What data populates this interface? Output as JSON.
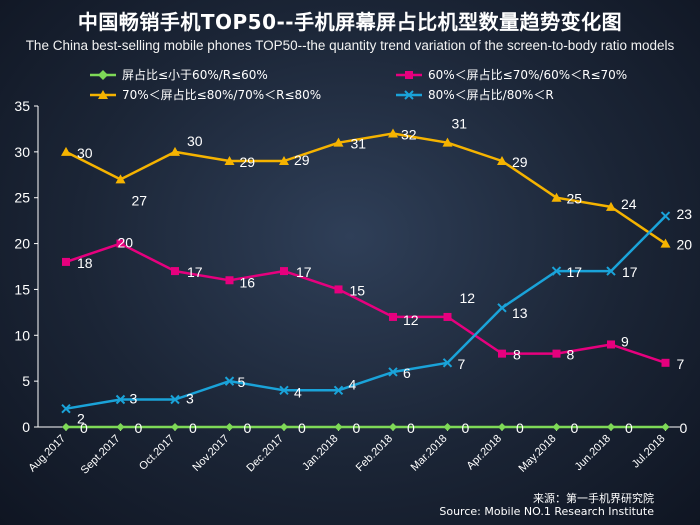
{
  "header": {
    "title": "中国畅销手机TOP50--手机屏幕屏占比机型数量趋势变化图",
    "subtitle": "The China best-selling mobile phones TOP50--the quantity trend variation of the screen-to-body ratio models"
  },
  "source": {
    "line1": "来源：第一手机界研究院",
    "line2": "Source: Mobile NO.1 Research Institute"
  },
  "colors": {
    "green": "#7ed957",
    "magenta": "#e6007e",
    "orange": "#f5b300",
    "blue": "#1aa3d9"
  },
  "chart_data": {
    "type": "line",
    "categories": [
      "Aug.2017",
      "Sept.2017",
      "Oct.2017",
      "Nov.2017",
      "Dec.2017",
      "Jan.2018",
      "Feb.2018",
      "Mar.2018",
      "Apr.2018",
      "May.2018",
      "Jun.2018",
      "Jul.2018"
    ],
    "ylim": [
      0,
      35
    ],
    "yticks": [
      0,
      5,
      10,
      15,
      20,
      25,
      30,
      35
    ],
    "grid": false,
    "legend_position": "top",
    "series": [
      {
        "name": "屏占比≤小于60%/R≤60%",
        "color": "#7ed957",
        "marker": "diamond",
        "values": [
          0,
          0,
          0,
          0,
          0,
          0,
          0,
          0,
          0,
          0,
          0,
          0
        ]
      },
      {
        "name": "60%＜屏占比≤70%/60%＜R≤70%",
        "color": "#e6007e",
        "marker": "square",
        "values": [
          18,
          20,
          17,
          16,
          17,
          15,
          12,
          12,
          8,
          8,
          9,
          7
        ]
      },
      {
        "name": "70%＜屏占比≤80%/70%＜R≤80%",
        "color": "#f5b300",
        "marker": "triangle",
        "values": [
          30,
          27,
          30,
          29,
          29,
          31,
          32,
          31,
          29,
          25,
          24,
          20
        ]
      },
      {
        "name": "80%＜屏占比/80%＜R",
        "color": "#1aa3d9",
        "marker": "x",
        "values": [
          2,
          3,
          3,
          5,
          4,
          4,
          6,
          7,
          13,
          17,
          17,
          23
        ]
      }
    ]
  }
}
